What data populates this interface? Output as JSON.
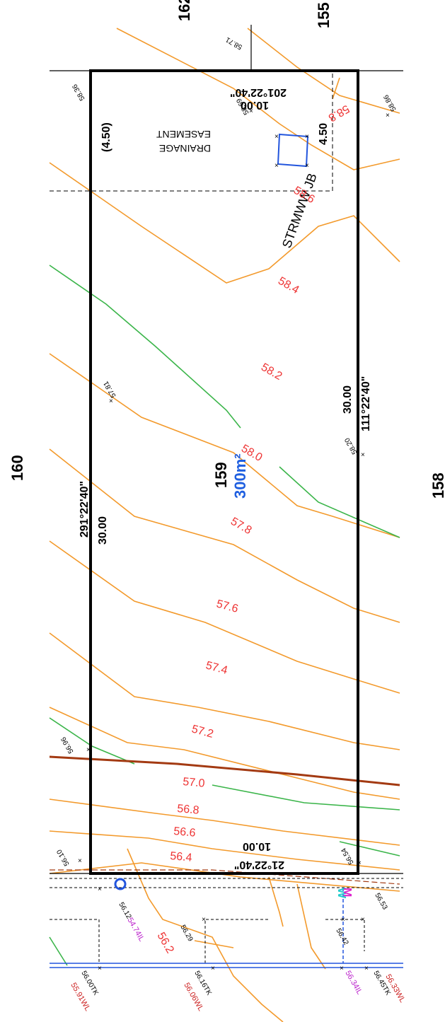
{
  "lots": {
    "subject_lot": "159",
    "subject_area": "300m²",
    "north_lot": "162",
    "north_east_lot": "155",
    "west_lot": "160",
    "east_lot": "158"
  },
  "boundaries": {
    "west_bearing": "291°22'40\"",
    "west_length": "30.00",
    "east_bearing": "111°22'40\"",
    "east_length": "30.00",
    "north_bearing": "201°22'40\"",
    "north_length": "10.00",
    "south_bearing": "21°22'40\"",
    "south_length": "10.00"
  },
  "easement": {
    "label_line1": "DRAINAGE",
    "label_line2": "EASEMENT",
    "width_left": "(4.50)",
    "width_right": "4.50",
    "junction_box": "STRMWW JB"
  },
  "contour_labels": [
    "58.8",
    "58.6",
    "58.4",
    "58.2",
    "58.0",
    "57.8",
    "57.6",
    "57.4",
    "57.2",
    "57.0",
    "56.8",
    "56.6",
    "56.4",
    "56.2"
  ],
  "spot_levels": {
    "nw": "58.36",
    "n_top": "58.71",
    "n_inner": "58.69",
    "ne": "58.86",
    "w_mid": "57.81",
    "e_mid": "58.20",
    "w_low": "56.96",
    "sw": "56.10",
    "se": "56.54",
    "s1": "56.12",
    "s2": "56.29",
    "s3": "56.53",
    "s4": "56.42"
  },
  "services": {
    "invert_1": "54.74IL",
    "invert_2": "56.34IL",
    "tk_1": "56.00TK",
    "wl_1": "55.91WL",
    "tk_2": "56.16TK",
    "wl_2": "56.06WL",
    "tk_3": "56.45TK",
    "wl_3": "56.33WL"
  },
  "colors": {
    "contour_major": "#f39a2c",
    "contour_green": "#3bb54a",
    "text_red": "#ee3333",
    "area_blue": "#1f5fe0",
    "service_blue": "#2255dd",
    "level_purple": "#bb22cc",
    "brown_line": "#a33a12"
  }
}
